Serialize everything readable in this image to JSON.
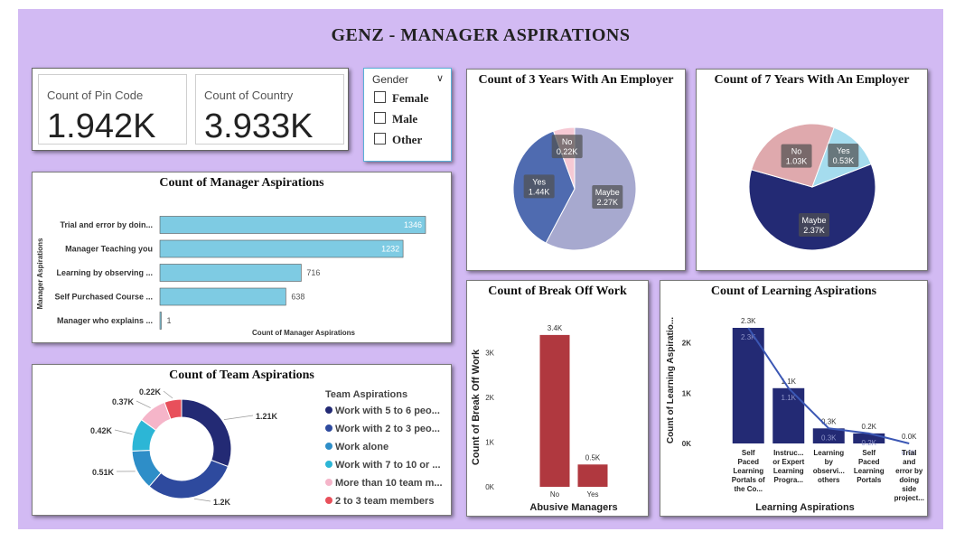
{
  "header": {
    "title": "GENZ  -  MANAGER  ASPIRATIONS"
  },
  "kpis": [
    {
      "label": "Count of Pin Code",
      "value": "1.942K"
    },
    {
      "label": "Count of Country",
      "value": "3.933K"
    }
  ],
  "slicer": {
    "title": "Gender",
    "options": [
      "Female",
      "Male",
      "Other"
    ]
  },
  "colors": {
    "canvas": "#d2baf3",
    "bar_light_blue": "#7ecbe3",
    "navy": "#232a74",
    "dark_red": "#b0383f",
    "trend_line": "#3b57b4"
  },
  "charts": {
    "manager_aspirations": {
      "title": "Count of Manager Aspirations",
      "ylabel": "Manager Aspirations",
      "xlabel": "Count of Manager Aspirations",
      "chart_data": {
        "type": "bar",
        "orientation": "horizontal",
        "categories": [
          "Trial and error by doin...",
          "Manager Teaching you",
          "Learning by observing ...",
          "Self Purchased Course ...",
          "Manager who explains ..."
        ],
        "values": [
          1346,
          1232,
          716,
          638,
          1
        ],
        "value_labels": [
          "1346",
          "1232",
          "716",
          "638",
          "1"
        ],
        "color": "#7ecbe3"
      }
    },
    "team_aspirations": {
      "title": "Count of Team Aspirations",
      "legend_title": "Team Aspirations",
      "chart_data": {
        "type": "pie",
        "style": "donut",
        "labels": [
          "Work with 5 to 6 peo...",
          "Work with 2 to 3 peo...",
          "Work alone",
          "Work with 7 to 10 or ...",
          "More than 10 team m...",
          "2 to 3 team members"
        ],
        "values": [
          1.21,
          1.2,
          0.51,
          0.42,
          0.37,
          0.22
        ],
        "value_labels": [
          "1.21K",
          "1.2K",
          "0.51K",
          "0.42K",
          "0.37K",
          "0.22K"
        ],
        "colors": [
          "#232a74",
          "#2e4a9e",
          "#2e8ec8",
          "#2cb6d6",
          "#f5b5c9",
          "#e8505b"
        ],
        "legend": "right"
      }
    },
    "three_years": {
      "title": "Count of 3 Years With An Employer",
      "chart_data": {
        "type": "pie",
        "labels": [
          "Maybe",
          "Yes",
          "No"
        ],
        "values": [
          2.27,
          1.44,
          0.22
        ],
        "value_labels": [
          "2.27K",
          "1.44K",
          "0.22K"
        ],
        "colors": [
          "#a7a9cf",
          "#4f6bb0",
          "#f6c9d4"
        ]
      }
    },
    "seven_years": {
      "title": "Count of 7 Years With An Employer",
      "chart_data": {
        "type": "pie",
        "labels": [
          "Maybe",
          "No",
          "Yes"
        ],
        "values": [
          2.37,
          1.03,
          0.53
        ],
        "value_labels": [
          "2.37K",
          "1.03K",
          "0.53K"
        ],
        "colors": [
          "#232a74",
          "#dfa9ad",
          "#a5dcee"
        ]
      }
    },
    "break_off_work": {
      "title": "Count of Break Off Work",
      "ylabel": "Count of Break Off Work",
      "xlabel": "Abusive Managers",
      "chart_data": {
        "type": "bar",
        "categories": [
          "No",
          "Yes"
        ],
        "values": [
          3.4,
          0.5
        ],
        "value_labels": [
          "3.4K",
          "0.5K"
        ],
        "yticks": [
          "0K",
          "1K",
          "2K",
          "3K"
        ],
        "ytick_values": [
          0,
          1,
          2,
          3
        ],
        "ylim": [
          0,
          3.6
        ],
        "color": "#b0383f"
      }
    },
    "learning_aspirations": {
      "title": "Count of Learning Aspirations",
      "ylabel": "Count of Learning Aspiratio...",
      "xlabel": "Learning Aspirations",
      "chart_data": {
        "type": "bar",
        "overlay": "line",
        "categories": [
          [
            "Self",
            "Paced",
            "Learning",
            "Portals of",
            "the Co..."
          ],
          [
            "Instruc...",
            "or Expert",
            "Learning",
            "Progra..."
          ],
          [
            "Learning",
            "by",
            "observi...",
            "others"
          ],
          [
            "Self",
            "Paced",
            "Learning",
            "Portals"
          ],
          [
            "Trial",
            "and",
            "error by",
            "doing",
            "side",
            "project..."
          ]
        ],
        "values": [
          2.3,
          1.1,
          0.3,
          0.2,
          0.0
        ],
        "bar_labels": [
          "2.3K",
          "1.1K",
          "0.3K",
          "0.2K",
          "0.0K"
        ],
        "line_labels": [
          "2.3K",
          "1.1K",
          "0.3K",
          "0.2K",
          "0.0K"
        ],
        "yticks": [
          "0K",
          "1K",
          "2K"
        ],
        "ytick_values": [
          0,
          1,
          2
        ],
        "ylim": [
          0,
          2.5
        ],
        "color": "#232a74",
        "line_color": "#3b57b4"
      }
    }
  }
}
